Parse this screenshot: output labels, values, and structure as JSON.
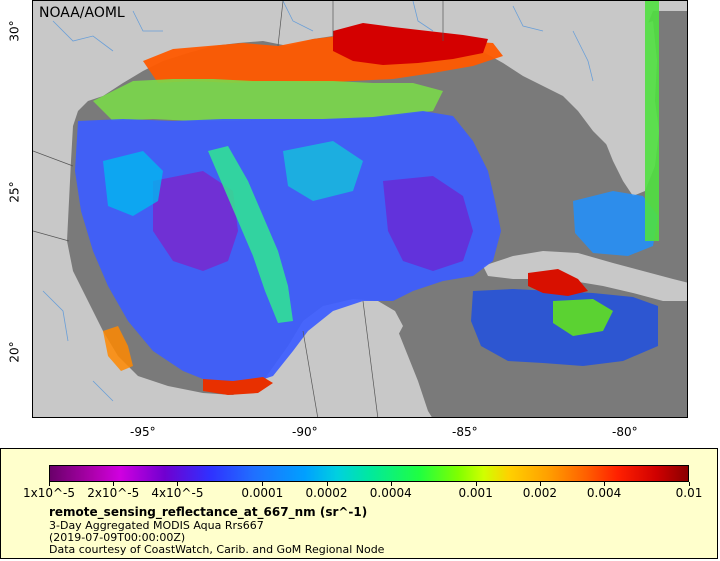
{
  "map": {
    "credit": "NOAA/AOML",
    "lon_ticks": [
      "-95°",
      "-90°",
      "-85°",
      "-80°"
    ],
    "lat_ticks": [
      "30°",
      "25°",
      "20°"
    ]
  },
  "legend": {
    "colorbar_labels": [
      "1x10^-5",
      "2x10^-5",
      "4x10^-5",
      "0.0001",
      "0.0002",
      "0.0004",
      "0.001",
      "0.002",
      "0.004",
      "0.01"
    ],
    "variable": "remote_sensing_reflectance_at_667_nm (sr^-1)",
    "dataset": "3-Day Aggregated MODIS Aqua Rrs667",
    "time": "(2019-07-09T00:00:00Z)",
    "source": "Data courtesy of CoastWatch, Carib. and GoM Regional Node"
  },
  "colors": {
    "land": "#c8c8c8",
    "no_data": "#7a7a7a",
    "legend_bg": "#ffffcc"
  }
}
